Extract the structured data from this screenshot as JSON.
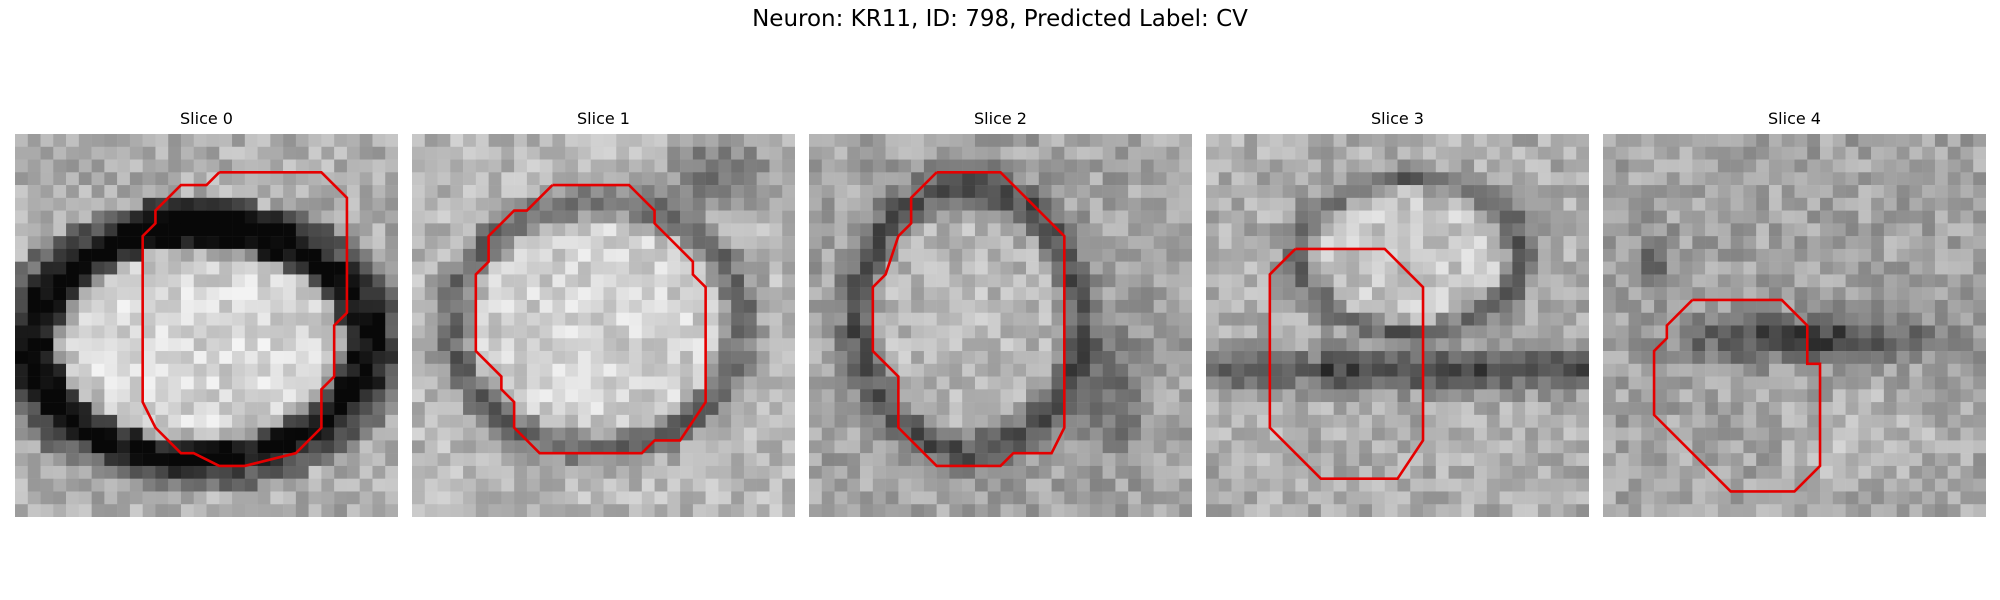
{
  "figure": {
    "title": "Neuron: KR11, ID: 798, Predicted Label: CV"
  },
  "panels": [
    {
      "title": "Slice 0",
      "contour_color": "#e50000"
    },
    {
      "title": "Slice 1",
      "contour_color": "#e50000"
    },
    {
      "title": "Slice 2",
      "contour_color": "#e50000"
    },
    {
      "title": "Slice 3",
      "contour_color": "#e50000"
    },
    {
      "title": "Slice 4",
      "contour_color": "#e50000"
    }
  ]
}
